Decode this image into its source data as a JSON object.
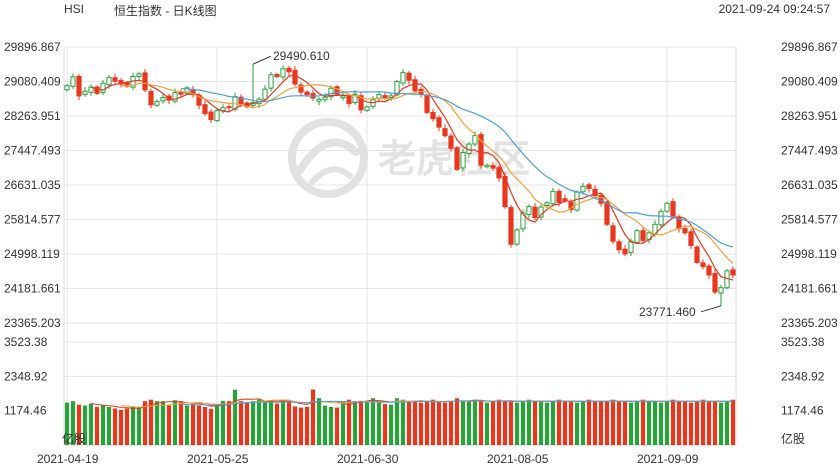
{
  "header": {
    "symbol": "HSI",
    "title": "恒生指数 - 日K线图",
    "datetime": "2021-09-24 09:24:57"
  },
  "watermark": {
    "text": "老虎社区",
    "icon": "tiger-logo-icon"
  },
  "colors": {
    "up": "#2aa23c",
    "down": "#e8371f",
    "ma5": "#e8371f",
    "ma10": "#f2a13c",
    "ma20": "#4a9fd8",
    "grid": "#e6e6e6"
  },
  "chart_data": {
    "type": "candlestick",
    "price_axis": {
      "range": [
        23365.203,
        29896.867
      ],
      "ticks": [
        "29896.867",
        "29080.409",
        "28263.951",
        "27447.493",
        "26631.035",
        "25814.577",
        "24998.119",
        "24181.661",
        "23365.203"
      ]
    },
    "volume_axis": {
      "unit_label": "亿股",
      "range": [
        0,
        3523.38
      ],
      "ticks": [
        "3523.38",
        "2348.92",
        "1174.46"
      ]
    },
    "x_ticks": [
      {
        "index": 0,
        "label": "2021-04-19"
      },
      {
        "index": 25,
        "label": "2021-05-25"
      },
      {
        "index": 50,
        "label": "2021-06-30"
      },
      {
        "index": 75,
        "label": "2021-08-05"
      },
      {
        "index": 100,
        "label": "2021-09-09"
      }
    ],
    "annotations": [
      {
        "label": "29490.610",
        "index": 31,
        "value": 29490.61
      },
      {
        "label": "23771.460",
        "index": 109,
        "value": 23771.46
      }
    ],
    "closes": [
      28980,
      29190,
      28740,
      28850,
      28950,
      28800,
      29040,
      29180,
      29090,
      29020,
      28970,
      29200,
      29260,
      28880,
      28530,
      28610,
      28700,
      28640,
      28820,
      28780,
      28930,
      28770,
      28520,
      28320,
      28180,
      28390,
      28460,
      28460,
      28720,
      28560,
      28480,
      28580,
      28660,
      28900,
      29240,
      29200,
      29380,
      29310,
      29020,
      28830,
      28770,
      28690,
      28660,
      28710,
      28920,
      28780,
      28740,
      28560,
      28780,
      28410,
      28480,
      28650,
      28770,
      28700,
      28740,
      29080,
      29290,
      29110,
      28860,
      28780,
      28350,
      28200,
      28000,
      27800,
      27500,
      27000,
      27400,
      27600,
      27800,
      27100,
      27100,
      27030,
      26800,
      26120,
      25230,
      25570,
      25970,
      26120,
      25860,
      26110,
      26210,
      26480,
      26220,
      26260,
      26050,
      26460,
      26600,
      26550,
      26380,
      26200,
      25700,
      25300,
      25100,
      25000,
      25300,
      25550,
      25320,
      25500,
      25700,
      26000,
      26200,
      25900,
      25600,
      25500,
      25200,
      24800,
      24700,
      24500,
      24100,
      24200,
      24600,
      24500
    ],
    "volume_scale_max": 3523.38,
    "volumes": [
      1450,
      1500,
      1380,
      1350,
      1420,
      1300,
      1360,
      1300,
      1250,
      1200,
      1250,
      1300,
      1280,
      1500,
      1550,
      1500,
      1500,
      1350,
      1530,
      1500,
      1350,
      1400,
      1350,
      1300,
      1240,
      1400,
      1510,
      1500,
      1890,
      1500,
      1450,
      1500,
      1550,
      1500,
      1530,
      1420,
      1550,
      1500,
      1320,
      1280,
      1300,
      1900,
      1600,
      1350,
      1300,
      1280,
      1500,
      1550,
      1500,
      1510,
      1480,
      1600,
      1500,
      1400,
      1380,
      1600,
      1550,
      1500,
      1480,
      1450,
      1500,
      1550,
      1480,
      1450,
      1500,
      1600,
      1520,
      1500,
      1550,
      1500,
      1450,
      1500,
      1550,
      1500,
      1480,
      1450,
      1500,
      1550,
      1500,
      1480,
      1450,
      1500,
      1550,
      1500,
      1480,
      1450,
      1500,
      1550,
      1500,
      1480,
      1500,
      1550,
      1500,
      1480,
      1450,
      1500,
      1550,
      1500,
      1480,
      1450,
      1500,
      1550,
      1500,
      1480,
      1450,
      1500,
      1550,
      1500,
      1480,
      1450,
      1500,
      1550
    ]
  }
}
